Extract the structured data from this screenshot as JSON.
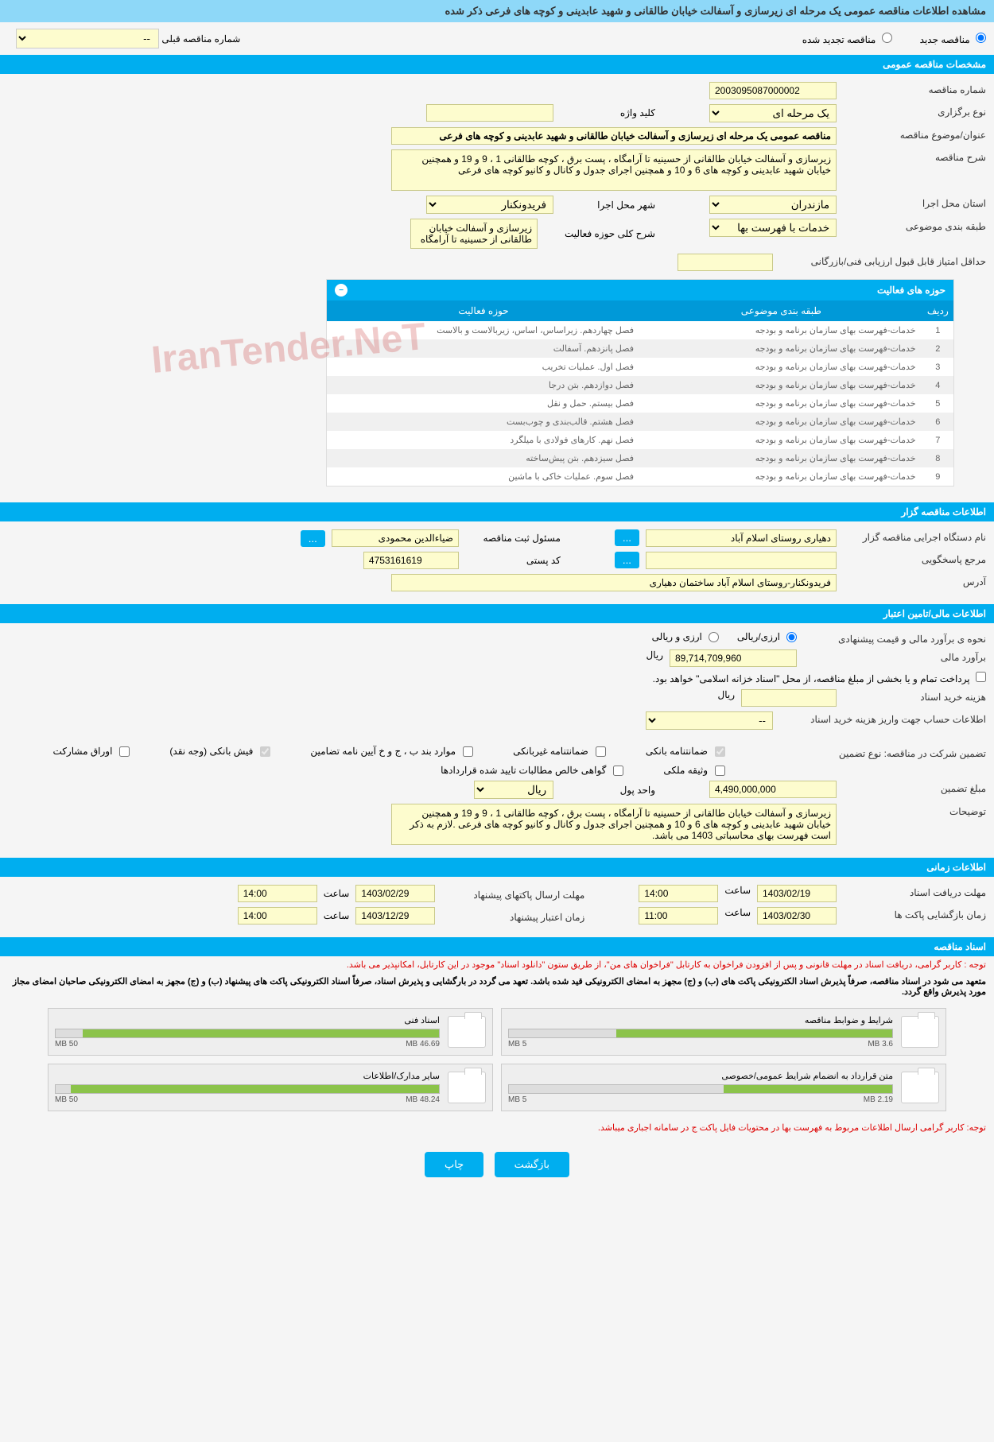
{
  "page_title": "مشاهده اطلاعات مناقصه عمومی یک مرحله ای زیرسازی و آسفالت خیابان طالقانی و شهید عابدینی و کوچه های فرعی ذکر شده",
  "radio_new": "مناقصه جدید",
  "radio_renew": "مناقصه تجدید شده",
  "prev_tender_label": "شماره مناقصه قبلی",
  "prev_tender_value": "--",
  "sec_general": "مشخصات مناقصه عمومی",
  "lbl_tender_no": "شماره مناقصه",
  "val_tender_no": "2003095087000002",
  "lbl_type": "نوع برگزاری",
  "val_type": "یک مرحله ای",
  "lbl_keyword": "کلید واژه",
  "val_keyword": "",
  "lbl_subject": "عنوان/موضوع مناقصه",
  "val_subject": "مناقصه عمومی یک مرحله ای زیرسازی و آسفالت خیابان طالقانی و شهید عابدینی و کوچه های فرعی",
  "lbl_desc": "شرح مناقصه",
  "val_desc": "زیرسازی و آسفالت خیابان طالقانی از حسینیه تا آرامگاه ، پست برق ، کوچه طالقانی 1 ، 9 و 19 و همچنین خیابان شهید عابدینی و کوچه های 6 و 10 و همچنین اجرای جدول و کانال و کانیو کوچه های فرعی",
  "lbl_province": "استان محل اجرا",
  "val_province": "مازندران",
  "lbl_city": "شهر محل اجرا",
  "val_city": "فریدونکنار",
  "lbl_category": "طبقه بندی موضوعی",
  "val_category": "خدمات با فهرست بها",
  "lbl_scope": "شرح کلی حوزه فعالیت",
  "val_scope": "زیرسازی و آسفالت خیابان طالقانی از حسینیه تا آرامگاه ،",
  "lbl_min_score": "حداقل امتیاز قابل قبول ارزیابی فنی/بازرگانی",
  "val_min_score": "",
  "activity_title": "حوزه های فعالیت",
  "activity_cols": {
    "num": "ردیف",
    "cat": "طبقه بندی موضوعی",
    "act": "حوزه فعالیت"
  },
  "activity_rows": [
    {
      "n": "1",
      "cat": "خدمات-فهرست بهای سازمان برنامه و بودجه",
      "act": "فصل چهاردهم. زیراساس، اساس، زیربالاست  و بالاست"
    },
    {
      "n": "2",
      "cat": "خدمات-فهرست بهای سازمان برنامه و بودجه",
      "act": "فصل پانزدهم. آسفالت"
    },
    {
      "n": "3",
      "cat": "خدمات-فهرست بهای سازمان برنامه و بودجه",
      "act": "فصل اول. عملیات تخریب"
    },
    {
      "n": "4",
      "cat": "خدمات-فهرست بهای سازمان برنامه و بودجه",
      "act": "فصل دوازدهم. بتن درجا"
    },
    {
      "n": "5",
      "cat": "خدمات-فهرست بهای سازمان برنامه و بودجه",
      "act": "فصل بیستم. حمل و نقل"
    },
    {
      "n": "6",
      "cat": "خدمات-فهرست بهای سازمان برنامه و بودجه",
      "act": "فصل هشتم. قالب‌بندی و چوب‌بست"
    },
    {
      "n": "7",
      "cat": "خدمات-فهرست بهای سازمان برنامه و بودجه",
      "act": "فصل نهم. کارهای فولادی با میلگرد"
    },
    {
      "n": "8",
      "cat": "خدمات-فهرست بهای سازمان برنامه و بودجه",
      "act": "فصل سیزدهم. بتن پیش‌ساخته"
    },
    {
      "n": "9",
      "cat": "خدمات-فهرست بهای سازمان برنامه و بودجه",
      "act": "فصل سوم. عملیات خاکی با ماشین"
    }
  ],
  "sec_owner": "اطلاعات مناقصه گزار",
  "lbl_owner_org": "نام دستگاه اجرایی مناقصه گزار",
  "val_owner_org": "دهیاری روستای اسلام آباد",
  "lbl_registrar": "مسئول ثبت مناقصه",
  "val_registrar": "ضیاءالدین محمودی",
  "lbl_contact": "مرجع پاسخگویی",
  "lbl_postcode": "کد پستی",
  "val_postcode": "4753161619",
  "lbl_address": "آدرس",
  "val_address": "فریدونکنار-روستای اسلام آباد ساختمان دهیاری",
  "sec_finance": "اطلاعات مالی/تامین اعتبار",
  "lbl_est_method": "نحوه ی برآورد مالی و قیمت پیشنهادی",
  "opt_rial": "ارزی/ریالی",
  "opt_both": "ارزی و ریالی",
  "lbl_est_amount": "برآورد مالی",
  "val_est_amount": "89,714,709,960",
  "rial": "ریال",
  "treasury_note": "پرداخت تمام و یا بخشی از مبلغ مناقصه، از محل \"اسناد خزانه اسلامی\" خواهد بود.",
  "lbl_doc_fee": "هزینه خرید اسناد",
  "lbl_fee_account": "اطلاعات حساب جهت واریز هزینه خرید اسناد",
  "lbl_guarantee_types": "تضمین شرکت در مناقصه:    نوع تضمین",
  "g_bank": "ضمانتنامه بانکی",
  "g_nonbank": "ضمانتنامه غیربانکی",
  "g_b": "موارد بند ب ، ج و خ آیین نامه تضامین",
  "g_cash": "فیش بانکی (وجه نقد)",
  "g_shares": "اوراق مشارکت",
  "g_property": "وثیقه ملکی",
  "g_receivables": "گواهی خالص مطالبات تایید شده قراردادها",
  "lbl_guarantee_amount": "مبلغ تضمین",
  "val_guarantee_amount": "4,490,000,000",
  "lbl_currency": "واحد پول",
  "val_currency": "ریال",
  "lbl_notes": "توضیحات",
  "val_notes": "زیرسازی و آسفالت خیابان طالقانی از حسینیه تا آرامگاه ، پست برق ، کوچه طالقانی 1 ، 9 و 19 و همچنین خیابان شهید عابدینی و کوچه های 6 و 10 و همچنین اجرای جدول و کانال و کانیو کوچه های فرعی .لازم به ذکر است فهرست بهای محاسباتی 1403 می باشد.",
  "sec_time": "اطلاعات زمانی",
  "lbl_receive_deadline": "مهلت دریافت اسناد",
  "val_receive_date": "1403/02/19",
  "val_receive_time": "14:00",
  "lbl_time": "ساعت",
  "lbl_submit_deadline": "مهلت ارسال پاکتهای پیشنهاد",
  "val_submit_date": "1403/02/29",
  "val_submit_time": "14:00",
  "lbl_open_time": "زمان بازگشایی پاکت ها",
  "val_open_date": "1403/02/30",
  "val_open_time": "11:00",
  "lbl_validity": "زمان اعتبار پیشنهاد",
  "val_validity_date": "1403/12/29",
  "val_validity_time": "14:00",
  "sec_docs": "اسناد مناقصه",
  "note1": "توجه : کاربر گرامی، دریافت اسناد در مهلت قانونی و پس از افزودن فراخوان به کارتابل \"فراخوان های من\"، از طریق ستون \"دانلود اسناد\" موجود در این کارتابل، امکانپذیر می باشد.",
  "note2": "متعهد می شود در اسناد مناقصه، صرفاً پذیرش اسناد الکترونیکی پاکت های (ب) و (ج) مجهز به امضای الکترونیکی قید شده باشد. تعهد می گردد در بارگشایی و پذیرش اسناد، صرفاً اسناد الکترونیکی پاکت های پیشنهاد (ب) و (ج) مجهز به امضای الکترونیکی صاحبان امضای مجاز مورد پذیرش واقع گردد.",
  "docs": [
    {
      "title": "شرایط و ضوابط مناقصه",
      "used": "3.6 MB",
      "total": "5 MB",
      "pct": 72
    },
    {
      "title": "اسناد فنی",
      "used": "46.69 MB",
      "total": "50 MB",
      "pct": 93
    },
    {
      "title": "متن قرارداد به انضمام شرایط عمومی/خصوصی",
      "used": "2.19 MB",
      "total": "5 MB",
      "pct": 44
    },
    {
      "title": "سایر مدارک/اطلاعات",
      "used": "48.24 MB",
      "total": "50 MB",
      "pct": 96
    }
  ],
  "note3": "توجه: کاربر گرامی ارسال اطلاعات مربوط به فهرست بها در محتویات فایل پاکت ج در سامانه اجباری میباشد.",
  "btn_back": "بازگشت",
  "btn_print": "چاپ",
  "btn_more": "...",
  "watermark": "IranTender.NeT"
}
